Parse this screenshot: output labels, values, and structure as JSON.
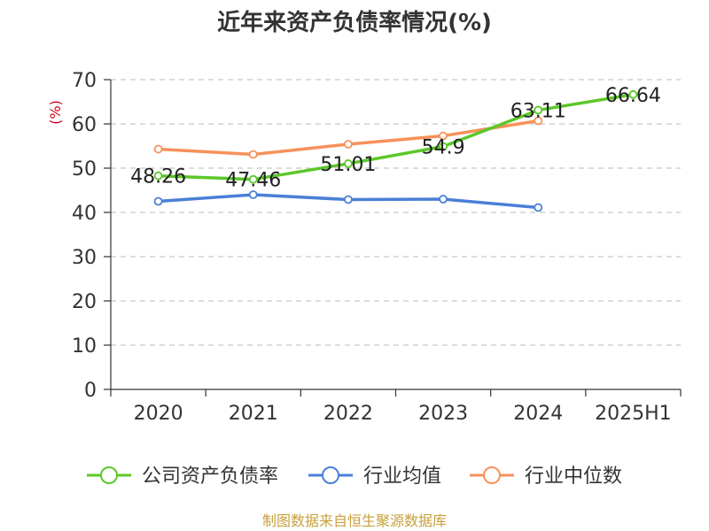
{
  "chart_data": {
    "type": "line",
    "title": "近年来资产负债率情况(%)",
    "ylabel": "(%)",
    "xlabel": "",
    "categories": [
      "2020",
      "2021",
      "2022",
      "2023",
      "2024",
      "2025H1"
    ],
    "ylim": [
      0,
      70
    ],
    "yticks": [
      0,
      10,
      20,
      30,
      40,
      50,
      60,
      70
    ],
    "grid": true,
    "legend_position": "bottom",
    "series": [
      {
        "name": "公司资产负债率",
        "color": "#5cc72a",
        "values": [
          48.26,
          47.46,
          51.01,
          54.9,
          63.11,
          66.64
        ],
        "labels": [
          "48.26",
          "47.46",
          "51.01",
          "54.9",
          "63.11",
          "66.64"
        ]
      },
      {
        "name": "行业均值",
        "color": "#4a7fd6",
        "values": [
          42.5,
          44.0,
          42.9,
          43.0,
          41.1,
          null
        ]
      },
      {
        "name": "行业中位数",
        "color": "#f7915a",
        "values": [
          54.3,
          53.1,
          55.4,
          57.3,
          60.7,
          null
        ]
      }
    ],
    "source": "制图数据来自恒生聚源数据库"
  }
}
